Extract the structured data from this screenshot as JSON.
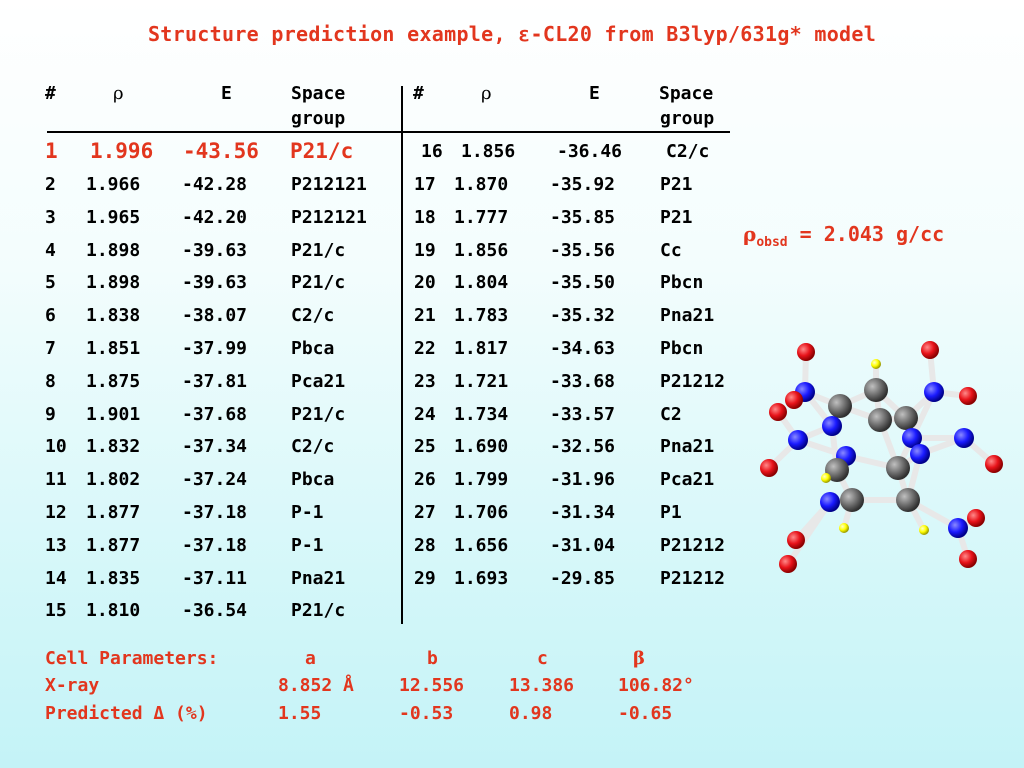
{
  "title": "Structure prediction example, ε-CL20 from B3lyp/631g* model",
  "table": {
    "headers": {
      "num": "#",
      "rho": "ρ",
      "energy": "E",
      "space_group_1": "Space",
      "space_group_2": "group"
    },
    "left_rows": [
      {
        "n": "1",
        "rho": "1.996",
        "e": "-43.56",
        "sg": "P21/c"
      },
      {
        "n": "2",
        "rho": "1.966",
        "e": "-42.28",
        "sg": "P212121"
      },
      {
        "n": "3",
        "rho": "1.965",
        "e": "-42.20",
        "sg": "P212121"
      },
      {
        "n": "4",
        "rho": "1.898",
        "e": "-39.63",
        "sg": "P21/c"
      },
      {
        "n": "5",
        "rho": "1.898",
        "e": "-39.63",
        "sg": "P21/c"
      },
      {
        "n": "6",
        "rho": "1.838",
        "e": "-38.07",
        "sg": "C2/c"
      },
      {
        "n": "7",
        "rho": "1.851",
        "e": "-37.99",
        "sg": "Pbca"
      },
      {
        "n": "8",
        "rho": "1.875",
        "e": "-37.81",
        "sg": "Pca21"
      },
      {
        "n": "9",
        "rho": "1.901",
        "e": "-37.68",
        "sg": "P21/c"
      },
      {
        "n": "10",
        "rho": "1.832",
        "e": "-37.34",
        "sg": "C2/c"
      },
      {
        "n": "11",
        "rho": "1.802",
        "e": "-37.24",
        "sg": "Pbca"
      },
      {
        "n": "12",
        "rho": "1.877",
        "e": "-37.18",
        "sg": "P-1"
      },
      {
        "n": "13",
        "rho": "1.877",
        "e": "-37.18",
        "sg": "P-1"
      },
      {
        "n": "14",
        "rho": "1.835",
        "e": "-37.11",
        "sg": "Pna21"
      },
      {
        "n": "15",
        "rho": "1.810",
        "e": "-36.54",
        "sg": "P21/c"
      }
    ],
    "right_rows": [
      {
        "n": "16",
        "rho": "1.856",
        "e": "-36.46",
        "sg": "C2/c"
      },
      {
        "n": "17",
        "rho": "1.870",
        "e": "-35.92",
        "sg": "P21"
      },
      {
        "n": "18",
        "rho": "1.777",
        "e": "-35.85",
        "sg": "P21"
      },
      {
        "n": "19",
        "rho": "1.856",
        "e": "-35.56",
        "sg": "Cc"
      },
      {
        "n": "20",
        "rho": "1.804",
        "e": "-35.50",
        "sg": "Pbcn"
      },
      {
        "n": "21",
        "rho": "1.783",
        "e": "-35.32",
        "sg": "Pna21"
      },
      {
        "n": "22",
        "rho": "1.817",
        "e": "-34.63",
        "sg": "Pbcn"
      },
      {
        "n": "23",
        "rho": "1.721",
        "e": "-33.68",
        "sg": "P21212"
      },
      {
        "n": "24",
        "rho": "1.734",
        "e": "-33.57",
        "sg": "C2"
      },
      {
        "n": "25",
        "rho": "1.690",
        "e": "-32.56",
        "sg": "Pna21"
      },
      {
        "n": "26",
        "rho": "1.799",
        "e": "-31.96",
        "sg": "Pca21"
      },
      {
        "n": "27",
        "rho": "1.706",
        "e": "-31.34",
        "sg": "P1"
      },
      {
        "n": "28",
        "rho": "1.656",
        "e": "-31.04",
        "sg": "P21212"
      },
      {
        "n": "29",
        "rho": "1.693",
        "e": "-29.85",
        "sg": "P21212"
      }
    ]
  },
  "observed_density": {
    "symbol": "ρ",
    "subscript": "obsd",
    "value": "= 2.043 g/cc"
  },
  "cell_parameters": {
    "label": "Cell Parameters:",
    "columns": [
      "a",
      "b",
      "c",
      "β"
    ],
    "xray": {
      "label": "X-ray",
      "values": [
        "8.852 Å",
        "12.556",
        "13.386",
        "106.82°"
      ]
    },
    "predicted": {
      "label": "Predicted Δ (%)",
      "values": [
        "1.55",
        "-0.53",
        "0.98",
        "-0.65"
      ]
    }
  },
  "colors": {
    "accent": "#e2361e",
    "background_top": "#ffffff",
    "background_bottom": "#c4f3f7",
    "atom_oxygen": "#e8131a",
    "atom_nitrogen": "#1a1aff",
    "atom_carbon": "#707070",
    "atom_hydrogen": "#ffff00"
  }
}
